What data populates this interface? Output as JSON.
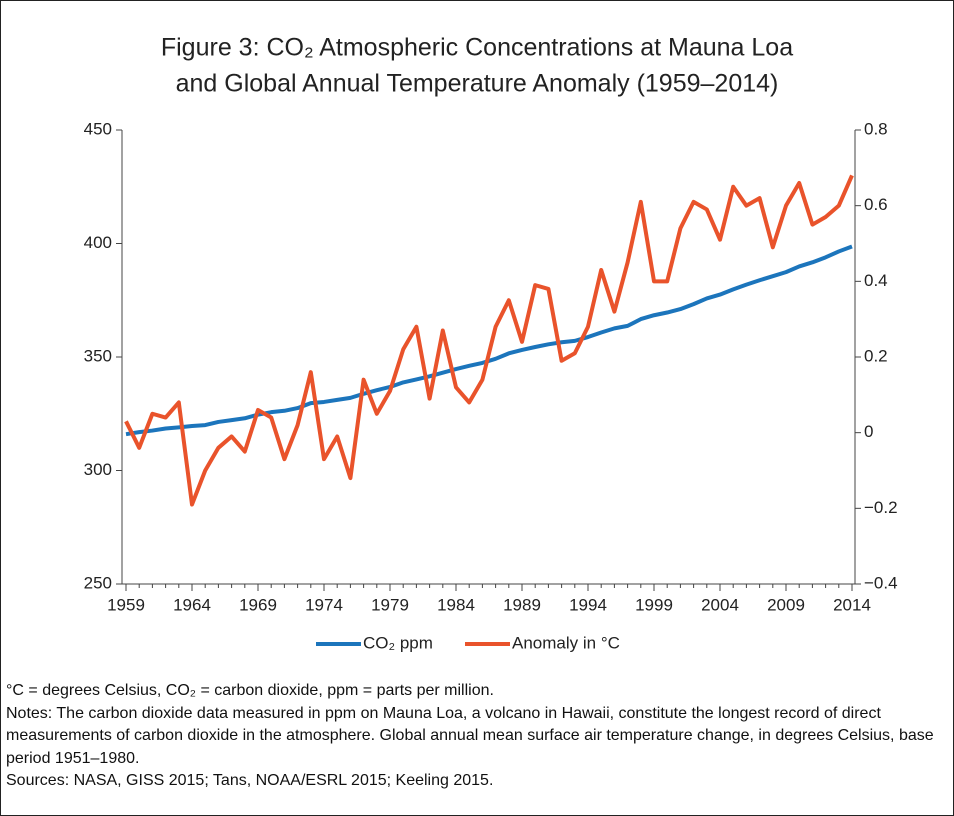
{
  "chart_data": {
    "type": "line",
    "title": [
      "Figure 3: CO₂ Atmospheric Concentrations at Mauna Loa",
      "and Global Annual Temperature Anomaly (1959–2014)"
    ],
    "x": [
      1959,
      1960,
      1961,
      1962,
      1963,
      1964,
      1965,
      1966,
      1967,
      1968,
      1969,
      1970,
      1971,
      1972,
      1973,
      1974,
      1975,
      1976,
      1977,
      1978,
      1979,
      1980,
      1981,
      1982,
      1983,
      1984,
      1985,
      1986,
      1987,
      1988,
      1989,
      1990,
      1991,
      1992,
      1993,
      1994,
      1995,
      1996,
      1997,
      1998,
      1999,
      2000,
      2001,
      2002,
      2003,
      2004,
      2005,
      2006,
      2007,
      2008,
      2009,
      2010,
      2011,
      2012,
      2013,
      2014
    ],
    "xlim": [
      1959,
      2014
    ],
    "xticks": [
      1959,
      1964,
      1969,
      1974,
      1979,
      1984,
      1989,
      1994,
      1999,
      2004,
      2009,
      2014
    ],
    "ylim": [
      250,
      450
    ],
    "yticks": [
      250,
      300,
      350,
      400,
      450
    ],
    "y2lim": [
      -0.4,
      0.8
    ],
    "y2ticks": [
      {
        "value": -0.4,
        "label": "−0.4"
      },
      {
        "value": -0.2,
        "label": "−0.2"
      },
      0,
      0.2,
      0.4,
      0.6,
      0.8
    ],
    "series": [
      {
        "name": "CO₂ ppm",
        "color": "#1c75bc",
        "values": [
          316.0,
          316.9,
          317.6,
          318.5,
          319.0,
          319.6,
          320.0,
          321.4,
          322.2,
          323.0,
          324.6,
          325.7,
          326.3,
          327.5,
          329.7,
          330.2,
          331.1,
          332.0,
          333.8,
          335.4,
          336.8,
          338.8,
          340.1,
          341.5,
          343.1,
          344.7,
          346.1,
          347.4,
          349.2,
          351.6,
          353.1,
          354.4,
          355.6,
          356.5,
          357.1,
          358.8,
          360.8,
          362.6,
          363.7,
          366.7,
          368.4,
          369.6,
          371.1,
          373.3,
          375.8,
          377.5,
          379.8,
          381.9,
          383.8,
          385.6,
          387.4,
          389.9,
          391.7,
          393.9,
          396.5,
          398.7
        ]
      },
      {
        "name": "Anomaly in °C",
        "color": "#e9532b",
        "axis": "y2",
        "values": [
          0.03,
          -0.04,
          0.05,
          0.04,
          0.08,
          -0.19,
          -0.1,
          -0.04,
          -0.01,
          -0.05,
          0.06,
          0.04,
          -0.07,
          0.02,
          0.16,
          -0.07,
          -0.01,
          -0.12,
          0.14,
          0.05,
          0.11,
          0.22,
          0.28,
          0.09,
          0.27,
          0.12,
          0.08,
          0.14,
          0.28,
          0.35,
          0.24,
          0.39,
          0.38,
          0.19,
          0.21,
          0.28,
          0.43,
          0.32,
          0.45,
          0.61,
          0.4,
          0.4,
          0.54,
          0.61,
          0.59,
          0.51,
          0.65,
          0.6,
          0.62,
          0.49,
          0.6,
          0.66,
          0.55,
          0.57,
          0.6,
          0.68
        ]
      }
    ],
    "notes": [
      "°C = degrees Celsius, CO₂ = carbon dioxide, ppm = parts per million.",
      "Notes: The carbon dioxide data measured in ppm on Mauna Loa, a volcano in Hawaii, constitute the longest record of direct measurements of carbon dioxide in the atmosphere. Global annual mean surface air temperature change, in degrees Celsius, base period 1951–1980.",
      "Sources: NASA, GISS 2015; Tans, NOAA/ESRL 2015; Keeling 2015."
    ]
  }
}
